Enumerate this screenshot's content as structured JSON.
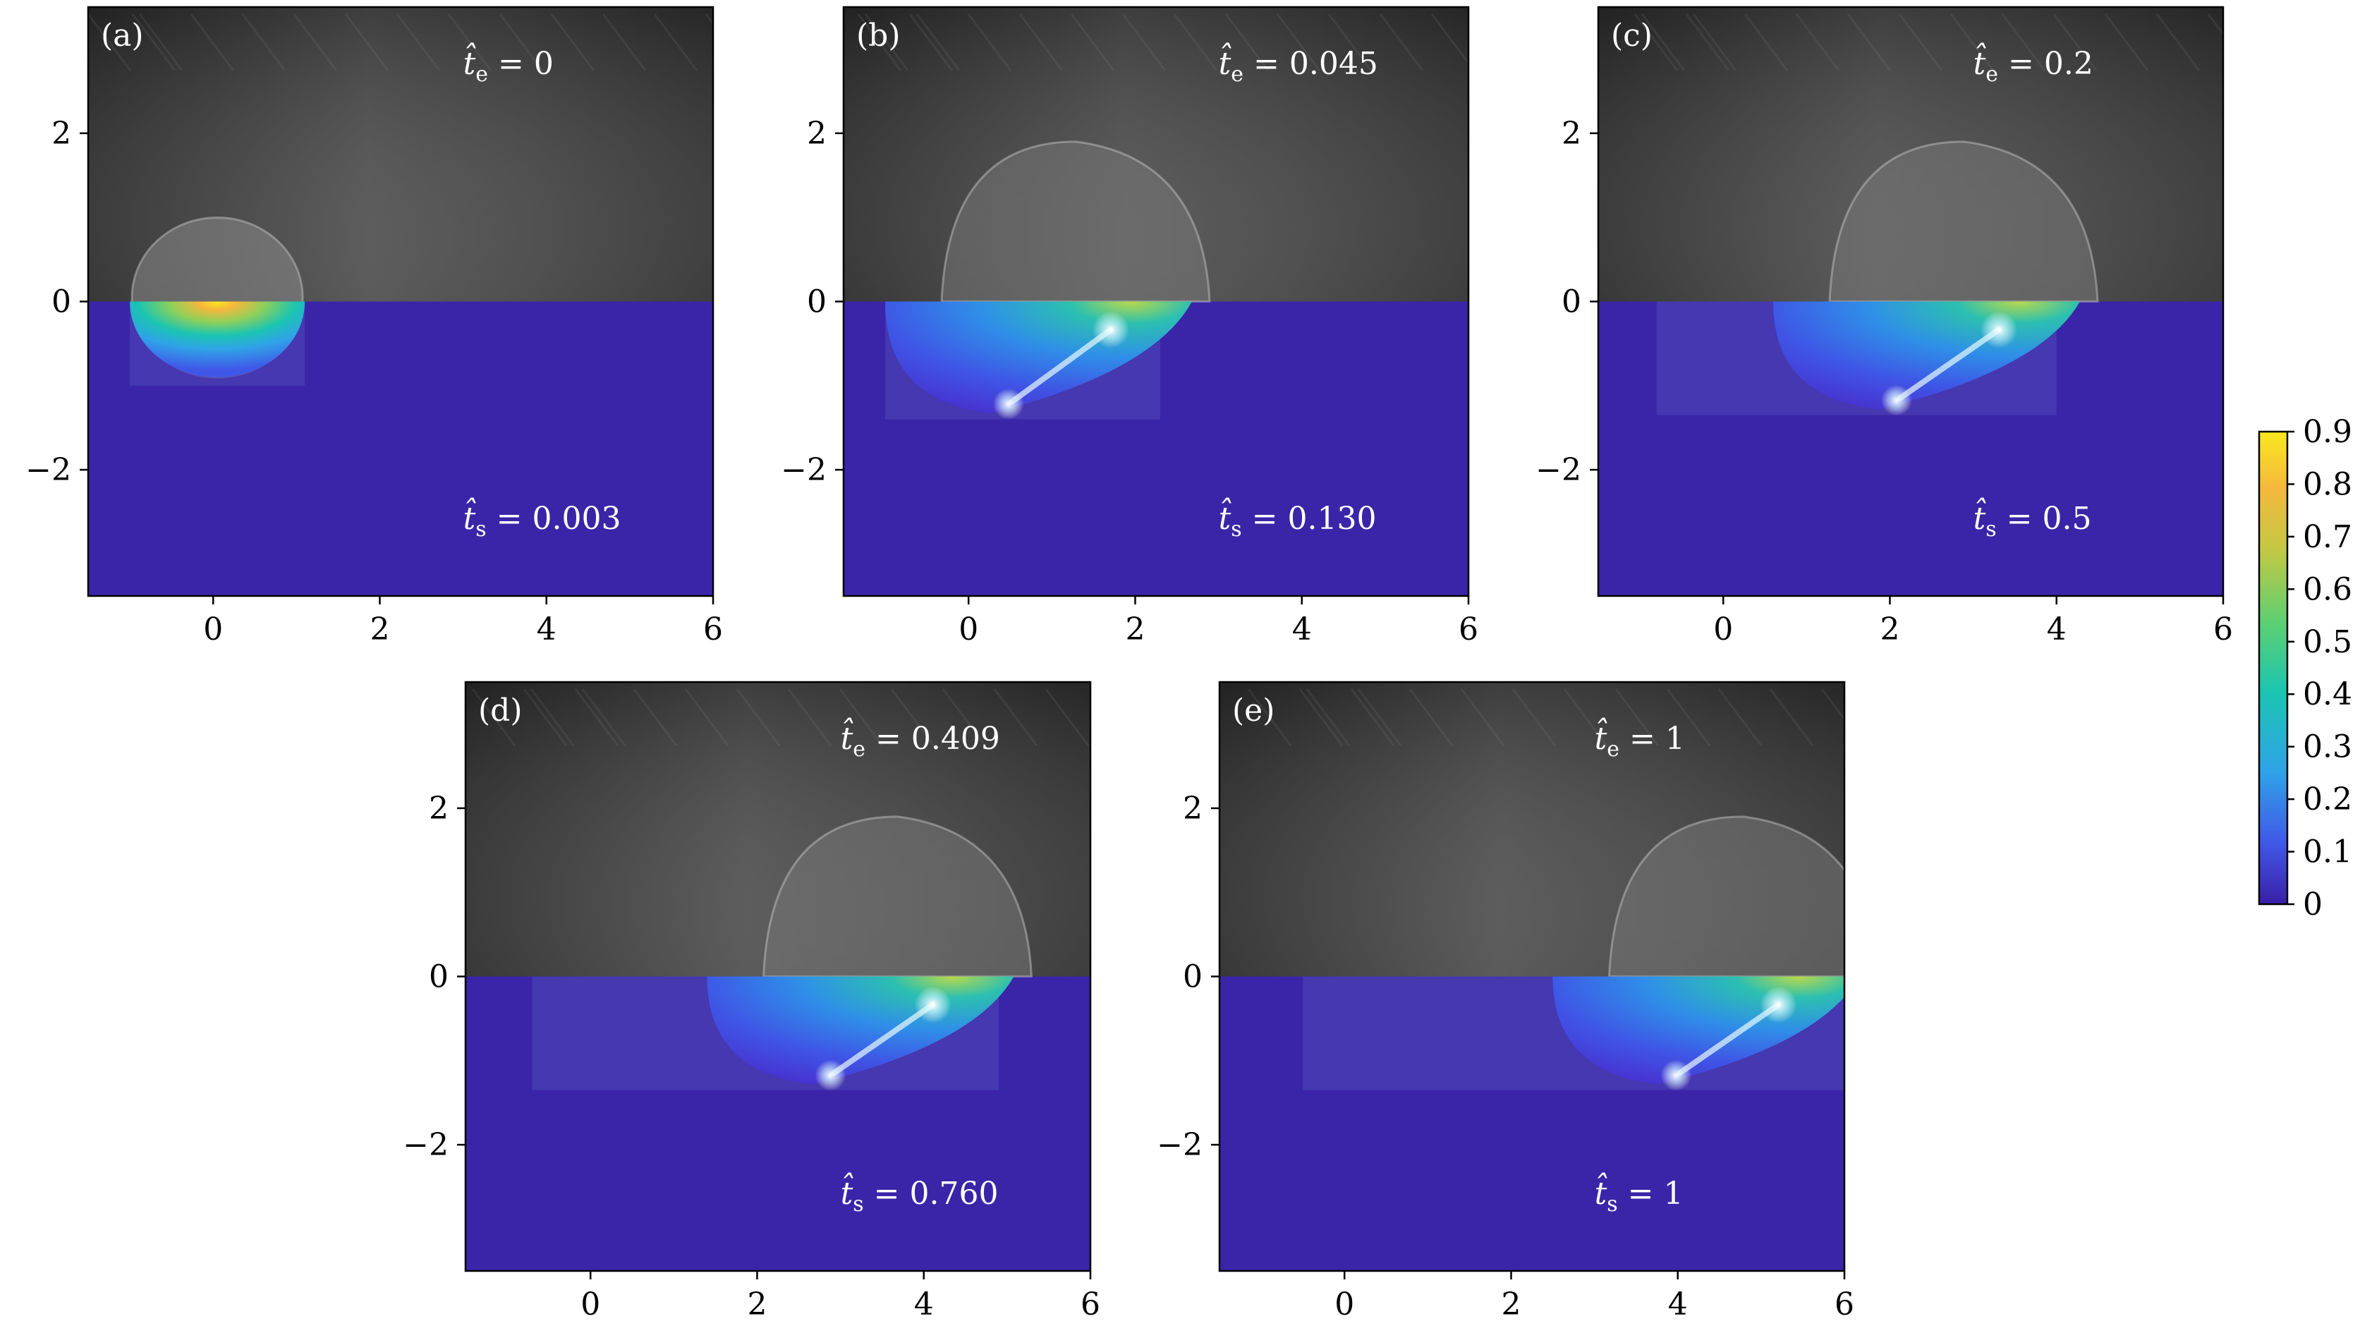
{
  "chart_data": [
    {
      "type": "heatmap",
      "panel_label": "(a)",
      "te_value": "0",
      "ts_value": "0.003",
      "xlim": [
        -1.5,
        6
      ],
      "ylim": [
        -3.5,
        3.5
      ],
      "xticks": [
        "0",
        "2",
        "4",
        "6"
      ],
      "yticks": [
        "2",
        "0",
        "−2"
      ],
      "droplet": {
        "x": [
          -1.0,
          1.1
        ],
        "depth": 1.0,
        "peak": 0.9,
        "hot_x": 0.1
      },
      "grid": false
    },
    {
      "type": "heatmap",
      "panel_label": "(b)",
      "te_value": "0.045",
      "ts_value": "0.130",
      "xlim": [
        -1.5,
        6
      ],
      "ylim": [
        -3.5,
        3.5
      ],
      "xticks": [
        "0",
        "2",
        "4",
        "6"
      ],
      "yticks": [
        "2",
        "0",
        "−2"
      ],
      "droplet": {
        "x": [
          -1.0,
          2.3
        ],
        "depth": 1.4,
        "peak": 0.75,
        "hot_x": 1.2
      },
      "grid": false
    },
    {
      "type": "heatmap",
      "panel_label": "(c)",
      "te_value": "0.2",
      "ts_value": "0.5",
      "xlim": [
        -1.5,
        6
      ],
      "ylim": [
        -3.5,
        3.5
      ],
      "xticks": [
        "0",
        "2",
        "4",
        "6"
      ],
      "yticks": [
        "2",
        "0",
        "−2"
      ],
      "droplet": {
        "x": [
          -0.8,
          4.0
        ],
        "depth": 1.35,
        "peak": 0.75,
        "hot_x": 2.8
      },
      "grid": false
    },
    {
      "type": "heatmap",
      "panel_label": "(d)",
      "te_value": "0.409",
      "ts_value": "0.760",
      "xlim": [
        -1.5,
        6
      ],
      "ylim": [
        -3.5,
        3.5
      ],
      "xticks": [
        "0",
        "2",
        "4",
        "6"
      ],
      "yticks": [
        "2",
        "0",
        "−2"
      ],
      "droplet": {
        "x": [
          -0.7,
          4.9
        ],
        "depth": 1.35,
        "peak": 0.75,
        "hot_x": 3.6
      },
      "grid": false
    },
    {
      "type": "heatmap",
      "panel_label": "(e)",
      "te_value": "1",
      "ts_value": "1",
      "xlim": [
        -1.5,
        6
      ],
      "ylim": [
        -3.5,
        3.5
      ],
      "xticks": [
        "0",
        "2",
        "4",
        "6"
      ],
      "yticks": [
        "2",
        "0",
        "−2"
      ],
      "droplet": {
        "x": [
          -0.5,
          6.0
        ],
        "depth": 1.35,
        "peak": 0.75,
        "hot_x": 4.7
      },
      "grid": false
    }
  ],
  "colorbar": {
    "ticks": [
      "0.9",
      "0.8",
      "0.7",
      "0.6",
      "0.5",
      "0.4",
      "0.3",
      "0.2",
      "0.1",
      "0"
    ],
    "range": [
      0,
      0.9
    ],
    "colormap": "viridis-like",
    "colors": [
      "#3a1fa7",
      "#4058e8",
      "#2fa3e8",
      "#1bc5b1",
      "#5fd070",
      "#c3c843",
      "#f5b83c",
      "#f9e81f"
    ]
  },
  "colors": {
    "sheet_background": "#3a25a8",
    "photo_background": "#3c3c3c",
    "annotation_text": "#ffffff",
    "axis": "#000000"
  }
}
